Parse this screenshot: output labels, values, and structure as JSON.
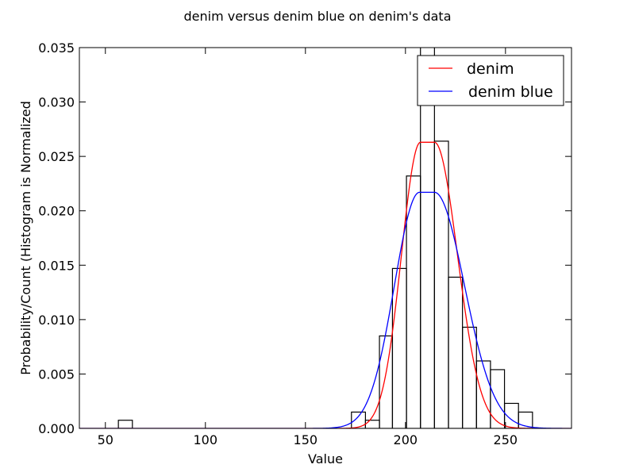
{
  "chart_data": {
    "type": "histogram",
    "title": "denim versus denim blue on denim's data",
    "xlabel": "Value",
    "ylabel": "Probability/Count (Histogram is Normalized",
    "xlim": [
      37,
      283
    ],
    "ylim": [
      0,
      0.035
    ],
    "x_ticks": [
      50,
      100,
      150,
      200,
      250
    ],
    "y_ticks": [
      0.0,
      0.005,
      0.01,
      0.015,
      0.02,
      0.025,
      0.03,
      0.035
    ],
    "x_tick_labels": [
      "50",
      "100",
      "150",
      "200",
      "250"
    ],
    "y_tick_labels": [
      "0.000",
      "0.005",
      "0.010",
      "0.015",
      "0.020",
      "0.025",
      "0.030",
      "0.035"
    ],
    "grid": false,
    "legend_position": "top-right",
    "histogram": {
      "bin_edges": [
        56.5,
        63.5,
        173.0,
        180.0,
        187.0,
        193.5,
        200.5,
        207.5,
        214.5,
        221.5,
        228.5,
        235.5,
        242.5,
        249.5,
        256.5,
        263.5
      ],
      "values": [
        0.00075,
        0.0,
        0.0015,
        0.00075,
        0.0085,
        0.0147,
        0.0232,
        0.0355,
        0.0264,
        0.0139,
        0.0093,
        0.0062,
        0.0054,
        0.0023,
        0.0015
      ],
      "color": "#000000"
    },
    "series": [
      {
        "name": "denim",
        "color": "#ff0000",
        "shape": "plateau",
        "peak": 0.0263,
        "plateau": [
          207.5,
          214.5
        ],
        "left_sigma": 9.5,
        "right_sigma": 11.5
      },
      {
        "name": "denim blue",
        "color": "#0000ff",
        "shape": "plateau",
        "peak": 0.0217,
        "plateau": [
          207.0,
          214.5
        ],
        "left_sigma": 12.5,
        "right_sigma": 15.0
      }
    ]
  }
}
